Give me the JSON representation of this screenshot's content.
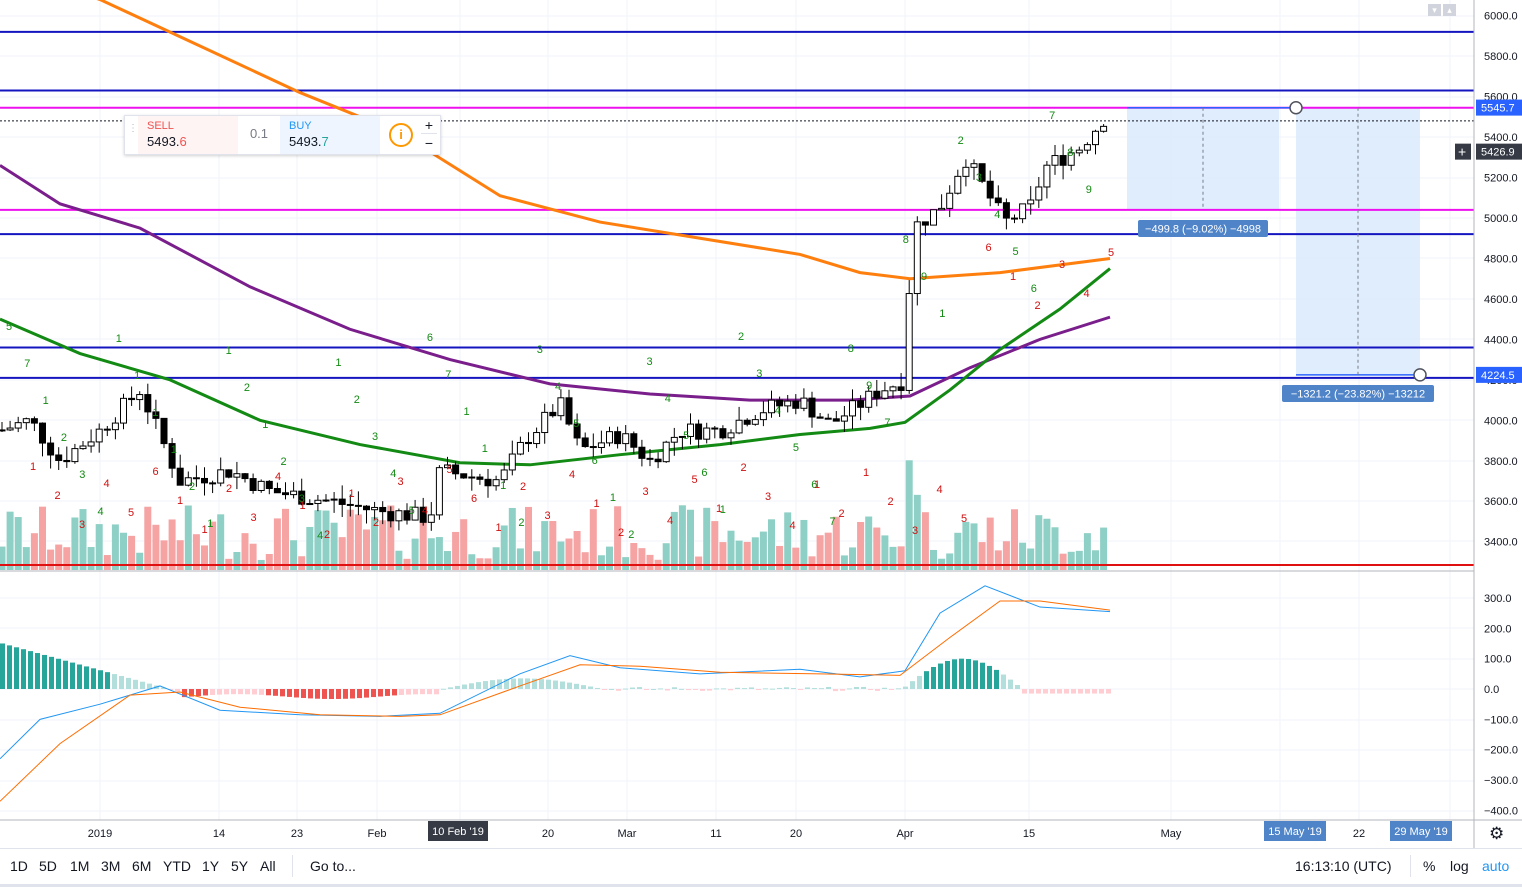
{
  "trade_widget": {
    "sell_label": "SELL",
    "sell_price_main": "5493.",
    "sell_price_dec": "6",
    "buy_label": "BUY",
    "buy_price_main": "5493.",
    "buy_price_dec": "7",
    "quantity": "0.1",
    "info_icon": "info-icon",
    "plus": "+",
    "minus": "−"
  },
  "price_axis": {
    "ticks": [
      "6000.0",
      "5800.0",
      "5600.0",
      "5400.0",
      "5200.0",
      "5000.0",
      "4800.0",
      "4600.0",
      "4400.0",
      "4200.0",
      "4000.0",
      "3800.0",
      "3600.0",
      "3400.0"
    ],
    "tick_values": [
      6000,
      5800,
      5600,
      5400,
      5200,
      5000,
      4800,
      4600,
      4400,
      4200,
      4000,
      3800,
      3600,
      3400
    ],
    "badges": [
      {
        "text": "5545.7",
        "value": 5545.7,
        "color": "#2962ff"
      },
      {
        "text": "5426.9",
        "value": 5426.9,
        "color": "#363a45"
      },
      {
        "text": "4224.5",
        "value": 4224.5,
        "color": "#2962ff"
      }
    ],
    "crosshair_icon": "crosshair-plus-icon"
  },
  "macd_axis": {
    "ticks": [
      "300.0",
      "200.0",
      "100.0",
      "0.0",
      "−100.0",
      "−200.0",
      "−300.0",
      "−400.0"
    ],
    "tick_values": [
      300,
      200,
      100,
      0,
      -100,
      -200,
      -300,
      -400
    ]
  },
  "time_axis": {
    "labels": [
      "2019",
      "14",
      "23",
      "Feb",
      "20",
      "Mar",
      "11",
      "20",
      "Apr",
      "15",
      "May",
      "22"
    ],
    "highlighted": [
      {
        "text": "10 Feb '19"
      },
      {
        "text": "15 May '19"
      },
      {
        "text": "29 May '19"
      }
    ],
    "settings_icon": "gear-icon"
  },
  "measurements": [
    {
      "text": "−499.8 (−9.02%) −4998"
    },
    {
      "text": "−1321.2 (−23.82%) −13212"
    }
  ],
  "horizontal_levels": {
    "blue": [
      5920,
      5630,
      4920,
      4360,
      4210
    ],
    "magenta": [
      5545,
      5040
    ],
    "red": [
      3280
    ],
    "colors": {
      "blue": "#1515c0",
      "magenta": "#ee10ee",
      "red": "#e01010"
    }
  },
  "td_labels_green": [
    "5",
    "7",
    "1",
    "2",
    "3",
    "4",
    "1",
    "1",
    "1",
    "1",
    "2",
    "1",
    "1",
    "2",
    "1",
    "2",
    "3",
    "4",
    "1",
    "2",
    "3",
    "4",
    "5",
    "6",
    "7",
    "1",
    "1",
    "1",
    "2",
    "3",
    "4",
    "5",
    "6",
    "1",
    "2",
    "3",
    "4",
    "5",
    "6",
    "1",
    "2",
    "3",
    "4",
    "5",
    "6",
    "7",
    "8",
    "9",
    "7",
    "8",
    "9",
    "1",
    "2",
    "3",
    "4",
    "5",
    "6",
    "7",
    "8",
    "9"
  ],
  "td_labels_red": [
    "1",
    "2",
    "3",
    "4",
    "5",
    "6",
    "1",
    "1",
    "2",
    "3",
    "4",
    "1",
    "2",
    "1",
    "2",
    "3",
    "4",
    "5",
    "6",
    "1",
    "2",
    "3",
    "4",
    "1",
    "2",
    "3",
    "4",
    "5",
    "1",
    "2",
    "3",
    "4",
    "1",
    "2",
    "1",
    "2",
    "3",
    "4",
    "5",
    "6",
    "1",
    "2",
    "3",
    "4",
    "5"
  ],
  "bottom_bar": {
    "ranges": [
      "1D",
      "5D",
      "1M",
      "3M",
      "6M",
      "YTD",
      "1Y",
      "5Y",
      "All"
    ],
    "goto": "Go to...",
    "time": "16:13:10 (UTC)",
    "percent": "%",
    "log": "log",
    "auto": "auto"
  },
  "colors": {
    "up_volume": "#8fd0c6",
    "down_volume": "#f5a3a3",
    "ma_orange": "#ff7f0e",
    "ma_green": "#138a13",
    "ma_purple": "#7a1e8c",
    "macd_blue": "#2196f3",
    "signal_orange": "#ff6d00",
    "range_fill": "#dbeafb"
  }
}
